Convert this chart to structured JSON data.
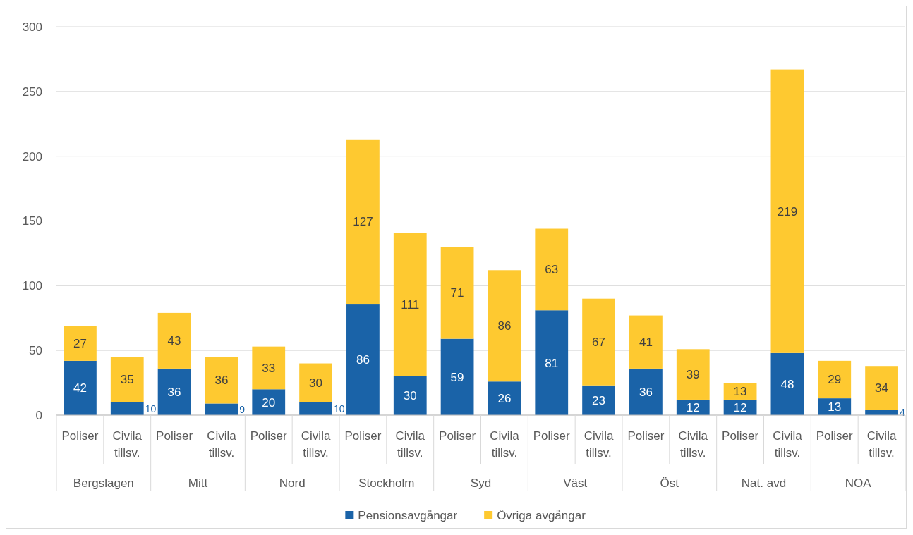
{
  "chart_data": {
    "type": "bar",
    "stacked": true,
    "categories": [
      "Poliser",
      "Civila tillsv.",
      "Poliser",
      "Civila tillsv.",
      "Poliser",
      "Civila tillsv.",
      "Poliser",
      "Civila tillsv.",
      "Poliser",
      "Civila tillsv.",
      "Poliser",
      "Civila tillsv.",
      "Poliser",
      "Civila tillsv.",
      "Poliser",
      "Civila tillsv.",
      "Poliser",
      "Civila tillsv."
    ],
    "annotations": [
      "Bergslagen",
      "Mitt",
      "Nord",
      "Stockholm",
      "Syd",
      "Väst",
      "Öst",
      "Nat. avd",
      "NOA"
    ],
    "series": [
      {
        "name": "Pensionsavgångar",
        "color": "#1a63a8",
        "values": [
          42,
          10,
          36,
          9,
          20,
          10,
          86,
          30,
          59,
          26,
          81,
          23,
          36,
          12,
          12,
          48,
          13,
          4
        ]
      },
      {
        "name": "Övriga avgångar",
        "color": "#fec930",
        "values": [
          27,
          35,
          43,
          36,
          33,
          30,
          127,
          111,
          71,
          86,
          63,
          67,
          41,
          39,
          13,
          219,
          29,
          34
        ]
      }
    ],
    "ylim": [
      0,
      300
    ],
    "yticks": [
      0,
      50,
      100,
      150,
      200,
      250,
      300
    ],
    "grid": "y",
    "data_labels": true,
    "legend": "bottom"
  }
}
